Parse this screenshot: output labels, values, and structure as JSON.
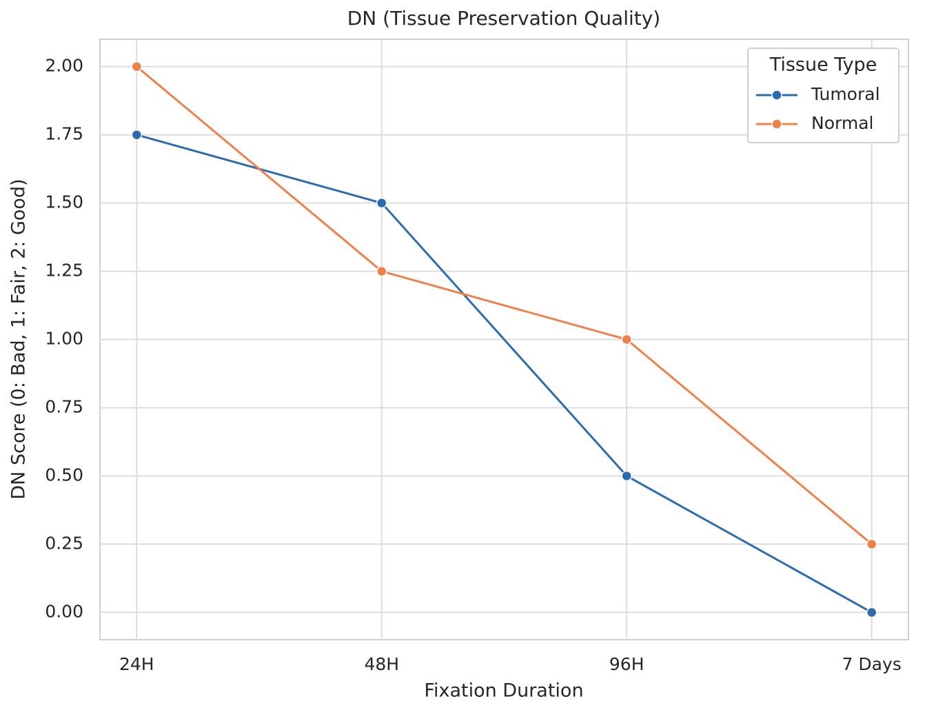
{
  "chart_data": {
    "type": "line",
    "title": "DN (Tissue Preservation Quality)",
    "x_label": "Fixation Duration",
    "y_label": "DN Score (0: Bad, 1: Fair, 2: Good)",
    "categories": [
      "24H",
      "48H",
      "96H",
      "7 Days"
    ],
    "series": [
      {
        "name": "Tumoral",
        "color": "#2b6cb0",
        "values": [
          1.75,
          1.5,
          0.5,
          0
        ]
      },
      {
        "name": "Normal",
        "color": "#f0804a",
        "values": [
          2,
          1.25,
          1,
          0.25
        ]
      }
    ],
    "ylim": [
      -0.1,
      2.1
    ],
    "yticks": [
      {
        "value": 0,
        "label": "0.00"
      },
      {
        "value": 0.25,
        "label": "0.25"
      },
      {
        "value": 0.5,
        "label": "0.50"
      },
      {
        "value": 0.75,
        "label": "0.75"
      },
      {
        "value": 1,
        "label": "1.00"
      },
      {
        "value": 1.25,
        "label": "1.25"
      },
      {
        "value": 1.5,
        "label": "1.50"
      },
      {
        "value": 1.75,
        "label": "1.75"
      },
      {
        "value": 2,
        "label": "2.00"
      }
    ],
    "grid": true,
    "legend_title": "Tissue Type",
    "legend_position": "upper right"
  }
}
